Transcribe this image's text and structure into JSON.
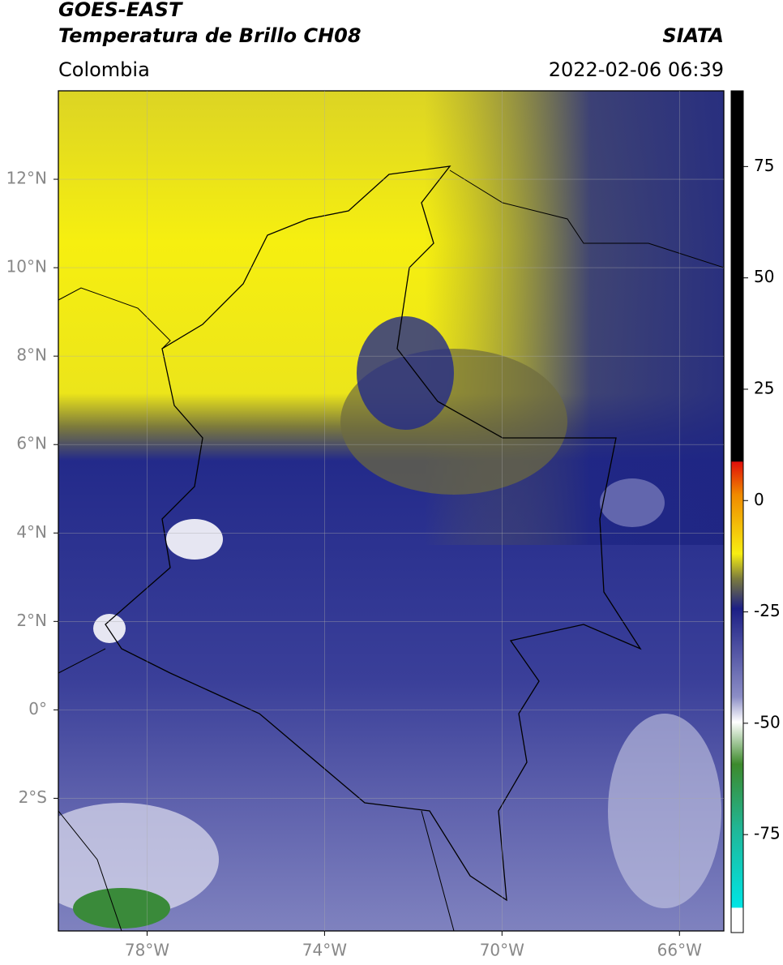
{
  "header": {
    "title_line1": "GOES-EAST",
    "title_line2": "Temperatura de Brillo CH08",
    "source": "SIATA",
    "region": "Colombia",
    "datetime": "2022-02-06 06:39"
  },
  "map": {
    "xlim": [
      -80,
      -65
    ],
    "ylim": [
      -5,
      14
    ],
    "xticks": [
      {
        "value": -78,
        "label": "78°W"
      },
      {
        "value": -74,
        "label": "74°W"
      },
      {
        "value": -70,
        "label": "70°W"
      },
      {
        "value": -66,
        "label": "66°W"
      }
    ],
    "yticks": [
      {
        "value": 12,
        "label": "12°N"
      },
      {
        "value": 10,
        "label": "10°N"
      },
      {
        "value": 8,
        "label": "8°N"
      },
      {
        "value": 6,
        "label": "6°N"
      },
      {
        "value": 4,
        "label": "4°N"
      },
      {
        "value": 2,
        "label": "2°N"
      },
      {
        "value": 0,
        "label": "0°"
      },
      {
        "value": -2,
        "label": "2°S"
      }
    ],
    "grid": true
  },
  "colorbar": {
    "lim": [
      -97,
      92
    ],
    "ticks": [
      75,
      50,
      25,
      0,
      -25,
      -50,
      -75
    ]
  }
}
